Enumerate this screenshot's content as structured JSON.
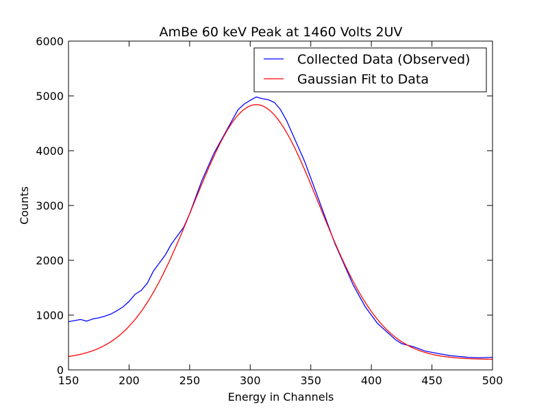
{
  "chart_data": {
    "type": "line",
    "title": "AmBe 60 keV Peak at 1460 Volts 2UV",
    "xlabel": "Energy in Channels",
    "ylabel": "Counts",
    "xlim": [
      150,
      500
    ],
    "ylim": [
      0,
      6000
    ],
    "xticks": [
      150,
      200,
      250,
      300,
      350,
      400,
      450,
      500
    ],
    "yticks": [
      0,
      1000,
      2000,
      3000,
      4000,
      5000,
      6000
    ],
    "grid": false,
    "legend_position": "top-right",
    "series": [
      {
        "name": "Collected Data (Observed)",
        "color": "#0000ff",
        "x": [
          150,
          155,
          160,
          165,
          170,
          175,
          180,
          185,
          190,
          195,
          200,
          205,
          210,
          215,
          220,
          225,
          230,
          235,
          240,
          245,
          250,
          255,
          260,
          265,
          270,
          275,
          280,
          285,
          290,
          295,
          300,
          305,
          310,
          315,
          320,
          325,
          330,
          335,
          340,
          345,
          350,
          355,
          360,
          365,
          370,
          375,
          380,
          385,
          390,
          395,
          400,
          405,
          410,
          415,
          420,
          425,
          430,
          435,
          440,
          445,
          450,
          455,
          460,
          465,
          470,
          475,
          480,
          485,
          490,
          495,
          500
        ],
        "y": [
          880,
          900,
          920,
          890,
          930,
          950,
          980,
          1020,
          1080,
          1150,
          1250,
          1380,
          1450,
          1580,
          1800,
          1950,
          2100,
          2300,
          2450,
          2600,
          2850,
          3150,
          3450,
          3700,
          3950,
          4150,
          4350,
          4550,
          4750,
          4850,
          4920,
          4980,
          4950,
          4930,
          4880,
          4750,
          4550,
          4300,
          4050,
          3800,
          3500,
          3200,
          2900,
          2600,
          2300,
          2050,
          1800,
          1550,
          1350,
          1150,
          1000,
          850,
          750,
          650,
          550,
          480,
          450,
          420,
          380,
          340,
          320,
          300,
          280,
          260,
          250,
          240,
          230,
          225,
          220,
          225,
          230
        ]
      },
      {
        "name": "Gaussian Fit to Data",
        "color": "#ff0000",
        "mu": 305,
        "sigma": 52,
        "amplitude": 4650,
        "offset": 190
      }
    ]
  }
}
